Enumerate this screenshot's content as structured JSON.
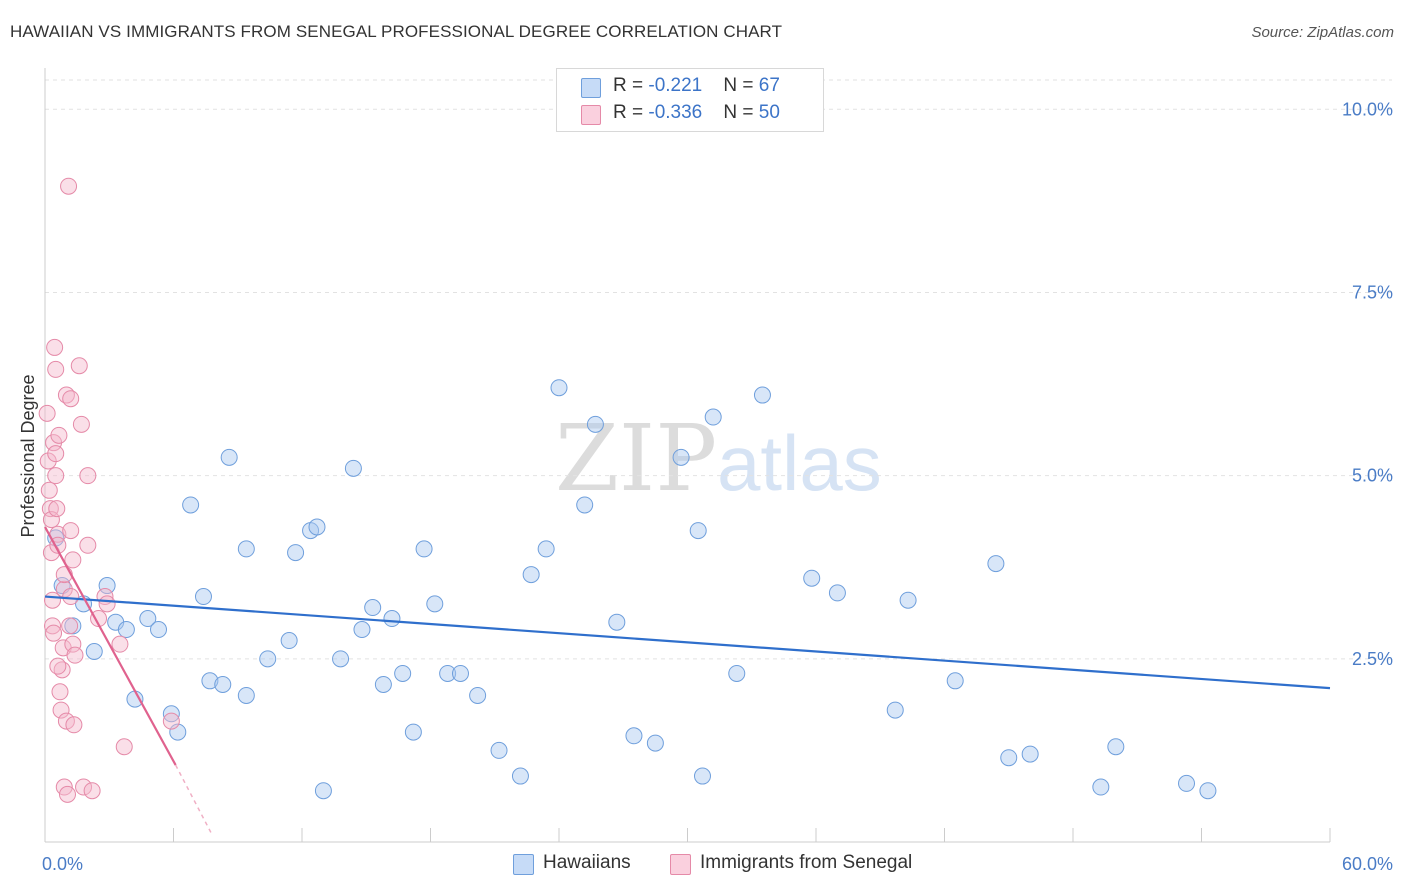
{
  "header": {
    "title": "HAWAIIAN VS IMMIGRANTS FROM SENEGAL PROFESSIONAL DEGREE CORRELATION CHART",
    "source": "Source: ZipAtlas.com"
  },
  "watermark": {
    "zip": "ZIP",
    "atlas": "atlas"
  },
  "legend": {
    "rows": [
      {
        "r_label": "R = ",
        "r_value": "-0.221",
        "n_label": "N = ",
        "n_value": "67",
        "color": "#a9c8f0"
      },
      {
        "r_label": "R = ",
        "r_value": "-0.336",
        "n_label": "N = ",
        "n_value": "50",
        "color": "#f5b8cc"
      }
    ]
  },
  "bottom_legend": {
    "items": [
      {
        "label": "Hawaiians",
        "color": "#a9c8f0"
      },
      {
        "label": "Immigrants from Senegal",
        "color": "#f5b8cc"
      }
    ]
  },
  "chart_data": {
    "type": "scatter",
    "title": "HAWAIIAN VS IMMIGRANTS FROM SENEGAL PROFESSIONAL DEGREE CORRELATION CHART",
    "ylabel": "Professional Degree",
    "xlabel": "",
    "xlim": [
      0,
      60
    ],
    "ylim": [
      0,
      10.4
    ],
    "x_tick_labels": [
      {
        "value": 0,
        "label": "0.0%"
      },
      {
        "value": 60,
        "label": "60.0%"
      }
    ],
    "y_tick_labels": [
      {
        "value": 2.5,
        "label": "2.5%"
      },
      {
        "value": 5.0,
        "label": "5.0%"
      },
      {
        "value": 7.5,
        "label": "7.5%"
      },
      {
        "value": 10.0,
        "label": "10.0%"
      }
    ],
    "grid": "horizontal dashed",
    "series": [
      {
        "name": "Hawaiians",
        "color": "#a9c8f0",
        "stroke": "#6f9fdc",
        "trend": {
          "x": [
            0,
            60
          ],
          "y": [
            3.35,
            2.1
          ],
          "color": "#2f6fcc"
        },
        "points": [
          [
            0.5,
            4.15
          ],
          [
            0.8,
            3.5
          ],
          [
            1.3,
            2.95
          ],
          [
            1.8,
            3.25
          ],
          [
            2.3,
            2.6
          ],
          [
            2.9,
            3.5
          ],
          [
            3.3,
            3.0
          ],
          [
            3.8,
            2.9
          ],
          [
            4.2,
            1.95
          ],
          [
            4.8,
            3.05
          ],
          [
            5.3,
            2.9
          ],
          [
            5.9,
            1.75
          ],
          [
            6.2,
            1.5
          ],
          [
            6.8,
            4.6
          ],
          [
            7.4,
            3.35
          ],
          [
            7.7,
            2.2
          ],
          [
            8.3,
            2.15
          ],
          [
            8.6,
            5.25
          ],
          [
            9.4,
            2.0
          ],
          [
            9.4,
            4.0
          ],
          [
            10.4,
            2.5
          ],
          [
            11.4,
            2.75
          ],
          [
            11.7,
            3.95
          ],
          [
            12.4,
            4.25
          ],
          [
            12.7,
            4.3
          ],
          [
            13.0,
            0.7
          ],
          [
            13.8,
            2.5
          ],
          [
            14.4,
            5.1
          ],
          [
            14.8,
            2.9
          ],
          [
            15.3,
            3.2
          ],
          [
            15.8,
            2.15
          ],
          [
            16.2,
            3.05
          ],
          [
            16.7,
            2.3
          ],
          [
            17.2,
            1.5
          ],
          [
            17.7,
            4.0
          ],
          [
            18.2,
            3.25
          ],
          [
            18.8,
            2.3
          ],
          [
            19.4,
            2.3
          ],
          [
            20.2,
            2.0
          ],
          [
            21.2,
            1.25
          ],
          [
            22.2,
            0.9
          ],
          [
            22.7,
            3.65
          ],
          [
            23.4,
            4.0
          ],
          [
            24.0,
            6.2
          ],
          [
            25.2,
            4.6
          ],
          [
            25.7,
            5.7
          ],
          [
            26.7,
            3.0
          ],
          [
            27.5,
            1.45
          ],
          [
            28.5,
            1.35
          ],
          [
            29.7,
            5.25
          ],
          [
            30.5,
            4.25
          ],
          [
            30.7,
            0.9
          ],
          [
            31.2,
            5.8
          ],
          [
            32.3,
            2.3
          ],
          [
            33.5,
            6.1
          ],
          [
            35.8,
            3.6
          ],
          [
            37.0,
            3.4
          ],
          [
            39.7,
            1.8
          ],
          [
            40.3,
            3.3
          ],
          [
            42.5,
            2.2
          ],
          [
            44.4,
            3.8
          ],
          [
            45.0,
            1.15
          ],
          [
            46.0,
            1.2
          ],
          [
            49.3,
            0.75
          ],
          [
            50.0,
            1.3
          ],
          [
            53.3,
            0.8
          ],
          [
            54.3,
            0.7
          ]
        ]
      },
      {
        "name": "Immigrants from Senegal",
        "color": "#f5b8cc",
        "stroke": "#e58aa8",
        "trend": {
          "x": [
            0,
            6.1
          ],
          "y": [
            4.3,
            1.05
          ],
          "dashed_extension": {
            "x": [
              6.1,
              7.8
            ],
            "y": [
              1.05,
              0.1
            ]
          },
          "color": "#e0628e"
        },
        "points": [
          [
            0.1,
            5.85
          ],
          [
            0.15,
            5.2
          ],
          [
            0.2,
            4.8
          ],
          [
            0.25,
            4.55
          ],
          [
            0.3,
            4.4
          ],
          [
            0.3,
            3.95
          ],
          [
            0.35,
            3.3
          ],
          [
            0.35,
            2.95
          ],
          [
            0.4,
            2.85
          ],
          [
            0.4,
            5.45
          ],
          [
            0.45,
            6.75
          ],
          [
            0.5,
            6.45
          ],
          [
            0.5,
            5.3
          ],
          [
            0.5,
            5.0
          ],
          [
            0.55,
            4.55
          ],
          [
            0.6,
            4.2
          ],
          [
            0.6,
            4.05
          ],
          [
            0.65,
            5.55
          ],
          [
            0.7,
            2.05
          ],
          [
            0.75,
            1.8
          ],
          [
            0.8,
            2.35
          ],
          [
            0.85,
            2.65
          ],
          [
            0.9,
            3.45
          ],
          [
            0.9,
            3.65
          ],
          [
            0.9,
            0.75
          ],
          [
            1.0,
            6.1
          ],
          [
            1.0,
            1.65
          ],
          [
            1.05,
            0.65
          ],
          [
            1.1,
            8.95
          ],
          [
            1.15,
            2.95
          ],
          [
            1.2,
            6.05
          ],
          [
            1.2,
            3.35
          ],
          [
            1.2,
            4.25
          ],
          [
            1.3,
            3.85
          ],
          [
            1.3,
            2.7
          ],
          [
            1.35,
            1.6
          ],
          [
            1.4,
            2.55
          ],
          [
            1.6,
            6.5
          ],
          [
            1.7,
            5.7
          ],
          [
            1.8,
            0.75
          ],
          [
            2.0,
            5.0
          ],
          [
            2.0,
            4.05
          ],
          [
            2.2,
            0.7
          ],
          [
            2.5,
            3.05
          ],
          [
            2.8,
            3.35
          ],
          [
            2.9,
            3.25
          ],
          [
            3.5,
            2.7
          ],
          [
            3.7,
            1.3
          ],
          [
            5.9,
            1.65
          ],
          [
            0.6,
            2.4
          ]
        ]
      }
    ]
  }
}
